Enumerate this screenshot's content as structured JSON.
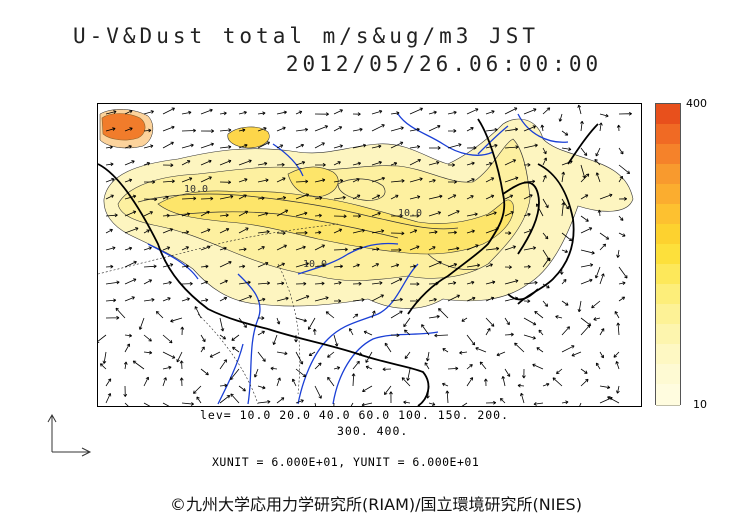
{
  "title": {
    "line1": "U-V&Dust total m/s&ug/m3 JST",
    "line2": "2012/05/26.06:00:00"
  },
  "colorbar": {
    "max_label": "400",
    "min_label": "10",
    "colors": [
      "#e8501c",
      "#f06a24",
      "#f5822a",
      "#f89a2e",
      "#fbad2f",
      "#fdc130",
      "#fdd22f",
      "#fde03b",
      "#fde85a",
      "#fdee7a",
      "#fdf296",
      "#fdf5ae",
      "#fef8c3",
      "#fefad3",
      "#fffcdf"
    ]
  },
  "levels": {
    "line1": "lev= 10.0 20.0 40.0 60.0 100. 150. 200.",
    "line2": "300. 400."
  },
  "units": "XUNIT = 6.000E+01, YUNIT = 6.000E+01",
  "credit": "©九州大学応用力学研究所(RIAM)/国立環境研究所(NIES)",
  "contour_labels": [
    "10.0",
    "10.0",
    "10.0"
  ],
  "colors": {
    "coast": "#000000",
    "rivers": "#1a3fd6",
    "dust_light": "#fdf5b8",
    "dust_mid": "#fde86a",
    "dust_high": "#e8501c"
  }
}
